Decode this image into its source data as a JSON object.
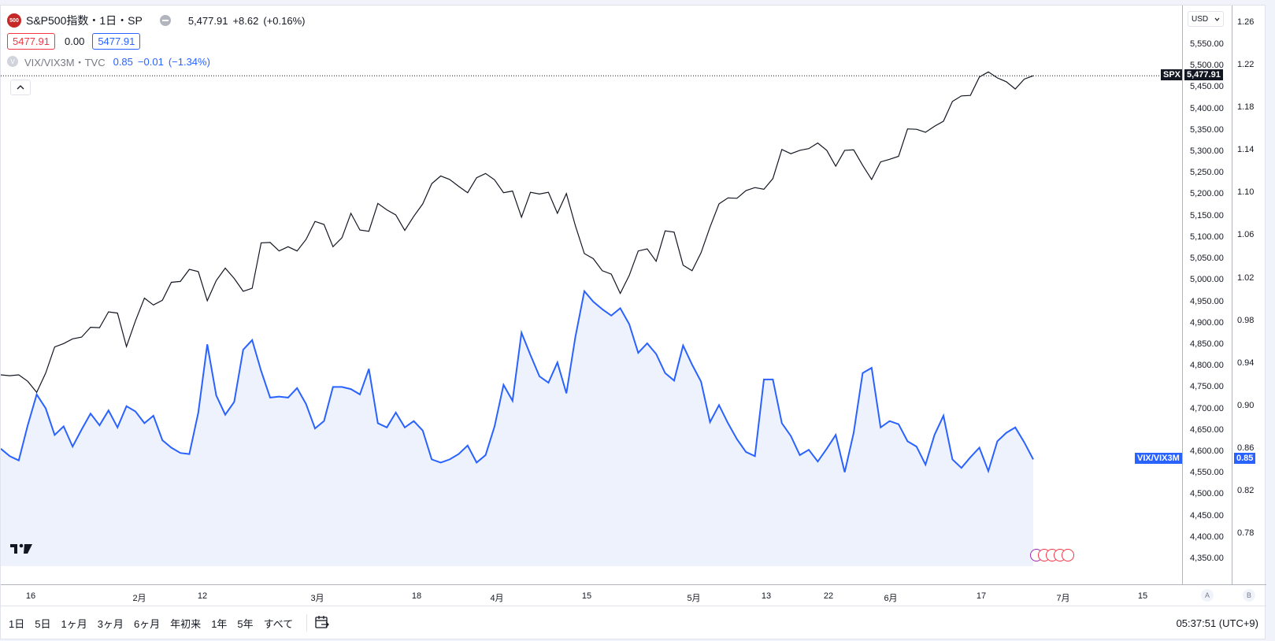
{
  "legend": {
    "main_symbol": {
      "logo_text": "500",
      "title": "S&P500指数・1日・SP",
      "price": "5,477.91",
      "change": "+8.62",
      "change_pct": "(+0.16%)"
    },
    "bid": "5477.91",
    "spread": "0.00",
    "ask": "5477.91",
    "compare_symbol": {
      "logo_text": "V",
      "title": "VIX/VIX3M・TVC",
      "value": "0.85",
      "change": "−0.01",
      "change_pct": "(−1.34%)"
    }
  },
  "collapse_icon": "chevron-up-icon",
  "currency": "USD",
  "price_axis_left": [
    "5,550.00",
    "5,500.00",
    "5,450.00",
    "5,400.00",
    "5,350.00",
    "5,300.00",
    "5,250.00",
    "5,200.00",
    "5,150.00",
    "5,100.00",
    "5,050.00",
    "5,000.00",
    "4,950.00",
    "4,900.00",
    "4,850.00",
    "4,800.00",
    "4,750.00",
    "4,700.00",
    "4,650.00",
    "4,600.00",
    "4,550.00",
    "4,500.00",
    "4,450.00",
    "4,400.00",
    "4,350.00"
  ],
  "price_axis_right": [
    "1.26",
    "1.22",
    "1.18",
    "1.14",
    "1.10",
    "1.06",
    "1.02",
    "0.98",
    "0.94",
    "0.90",
    "0.86",
    "0.82",
    "0.78"
  ],
  "tags": {
    "spx_label": "SPX",
    "spx_value": "5,477.91",
    "vix_label": "VIX/VIX3M",
    "vix_value": "0.85"
  },
  "time_axis": [
    "16",
    "2月",
    "12",
    "3月",
    "18",
    "4月",
    "15",
    "5月",
    "13",
    "22",
    "6月",
    "17",
    "7月",
    "15"
  ],
  "axis_buttons": {
    "a": "A",
    "b": "B"
  },
  "range_buttons": [
    "1日",
    "5日",
    "1ヶ月",
    "3ヶ月",
    "6ヶ月",
    "年初来",
    "1年",
    "5年",
    "すべて"
  ],
  "clock": "05:37:51 (UTC+9)",
  "colors": {
    "spx_line": "#131722",
    "vix_line": "#2962ff",
    "vix_fill": "#eef2fd",
    "up": "#089981",
    "down": "#f23645"
  },
  "chart_data": {
    "type": "line",
    "series": [
      {
        "name": "S&P500指数",
        "values": [
          4780,
          4778,
          4780,
          4765,
          4739,
          4784,
          4845,
          4853,
          4864,
          4868,
          4891,
          4890,
          4927,
          4924,
          4846,
          4906,
          4959,
          4943,
          4954,
          4996,
          4998,
          5026,
          5021,
          4953,
          5000,
          5029,
          5005,
          4975,
          4982,
          5088,
          5089,
          5069,
          5079,
          5069,
          5096,
          5138,
          5131,
          5079,
          5100,
          5157,
          5118,
          5115,
          5180,
          5165,
          5153,
          5117,
          5150,
          5179,
          5226,
          5244,
          5236,
          5220,
          5205,
          5240,
          5250,
          5235,
          5205,
          5209,
          5148,
          5206,
          5202,
          5206,
          5157,
          5203,
          5128,
          5063,
          5051,
          5023,
          5015,
          4970,
          5012,
          5069,
          5074,
          5045,
          5116,
          5113,
          5036,
          5023,
          5065,
          5125,
          5179,
          5193,
          5192,
          5210,
          5217,
          5213,
          5238,
          5306,
          5296,
          5304,
          5308,
          5321,
          5304,
          5267,
          5304,
          5305,
          5269,
          5236,
          5277,
          5283,
          5290,
          5354,
          5353,
          5346,
          5360,
          5372,
          5418,
          5431,
          5432,
          5475,
          5487,
          5473,
          5464,
          5447,
          5470,
          5477.91
        ]
      },
      {
        "name": "VIX/VIX3M",
        "values": [
          0.86,
          0.853,
          0.849,
          0.882,
          0.911,
          0.898,
          0.873,
          0.881,
          0.862,
          0.878,
          0.893,
          0.882,
          0.896,
          0.88,
          0.9,
          0.895,
          0.884,
          0.891,
          0.868,
          0.861,
          0.856,
          0.855,
          0.894,
          0.958,
          0.91,
          0.892,
          0.904,
          0.953,
          0.962,
          0.933,
          0.908,
          0.909,
          0.908,
          0.917,
          0.902,
          0.879,
          0.886,
          0.918,
          0.918,
          0.916,
          0.911,
          0.935,
          0.884,
          0.88,
          0.894,
          0.88,
          0.886,
          0.877,
          0.85,
          0.847,
          0.85,
          0.855,
          0.863,
          0.847,
          0.854,
          0.881,
          0.92,
          0.905,
          0.969,
          0.948,
          0.928,
          0.922,
          0.941,
          0.912,
          0.965,
          1.008,
          0.998,
          0.991,
          0.985,
          0.992,
          0.977,
          0.95,
          0.959,
          0.949,
          0.931,
          0.924,
          0.957,
          0.939,
          0.923,
          0.885,
          0.901,
          0.884,
          0.869,
          0.857,
          0.853,
          0.925,
          0.925,
          0.884,
          0.872,
          0.854,
          0.859,
          0.848,
          0.86,
          0.873,
          0.838,
          0.875,
          0.931,
          0.936,
          0.88,
          0.886,
          0.883,
          0.867,
          0.862,
          0.845,
          0.873,
          0.891,
          0.85,
          0.842,
          0.852,
          0.861,
          0.839,
          0.867,
          0.875,
          0.88,
          0.866,
          0.85
        ]
      }
    ],
    "left_axis_range": [
      4350,
      5550
    ],
    "right_axis_range": [
      0.78,
      1.26
    ],
    "last_price_line": 5477.91
  }
}
